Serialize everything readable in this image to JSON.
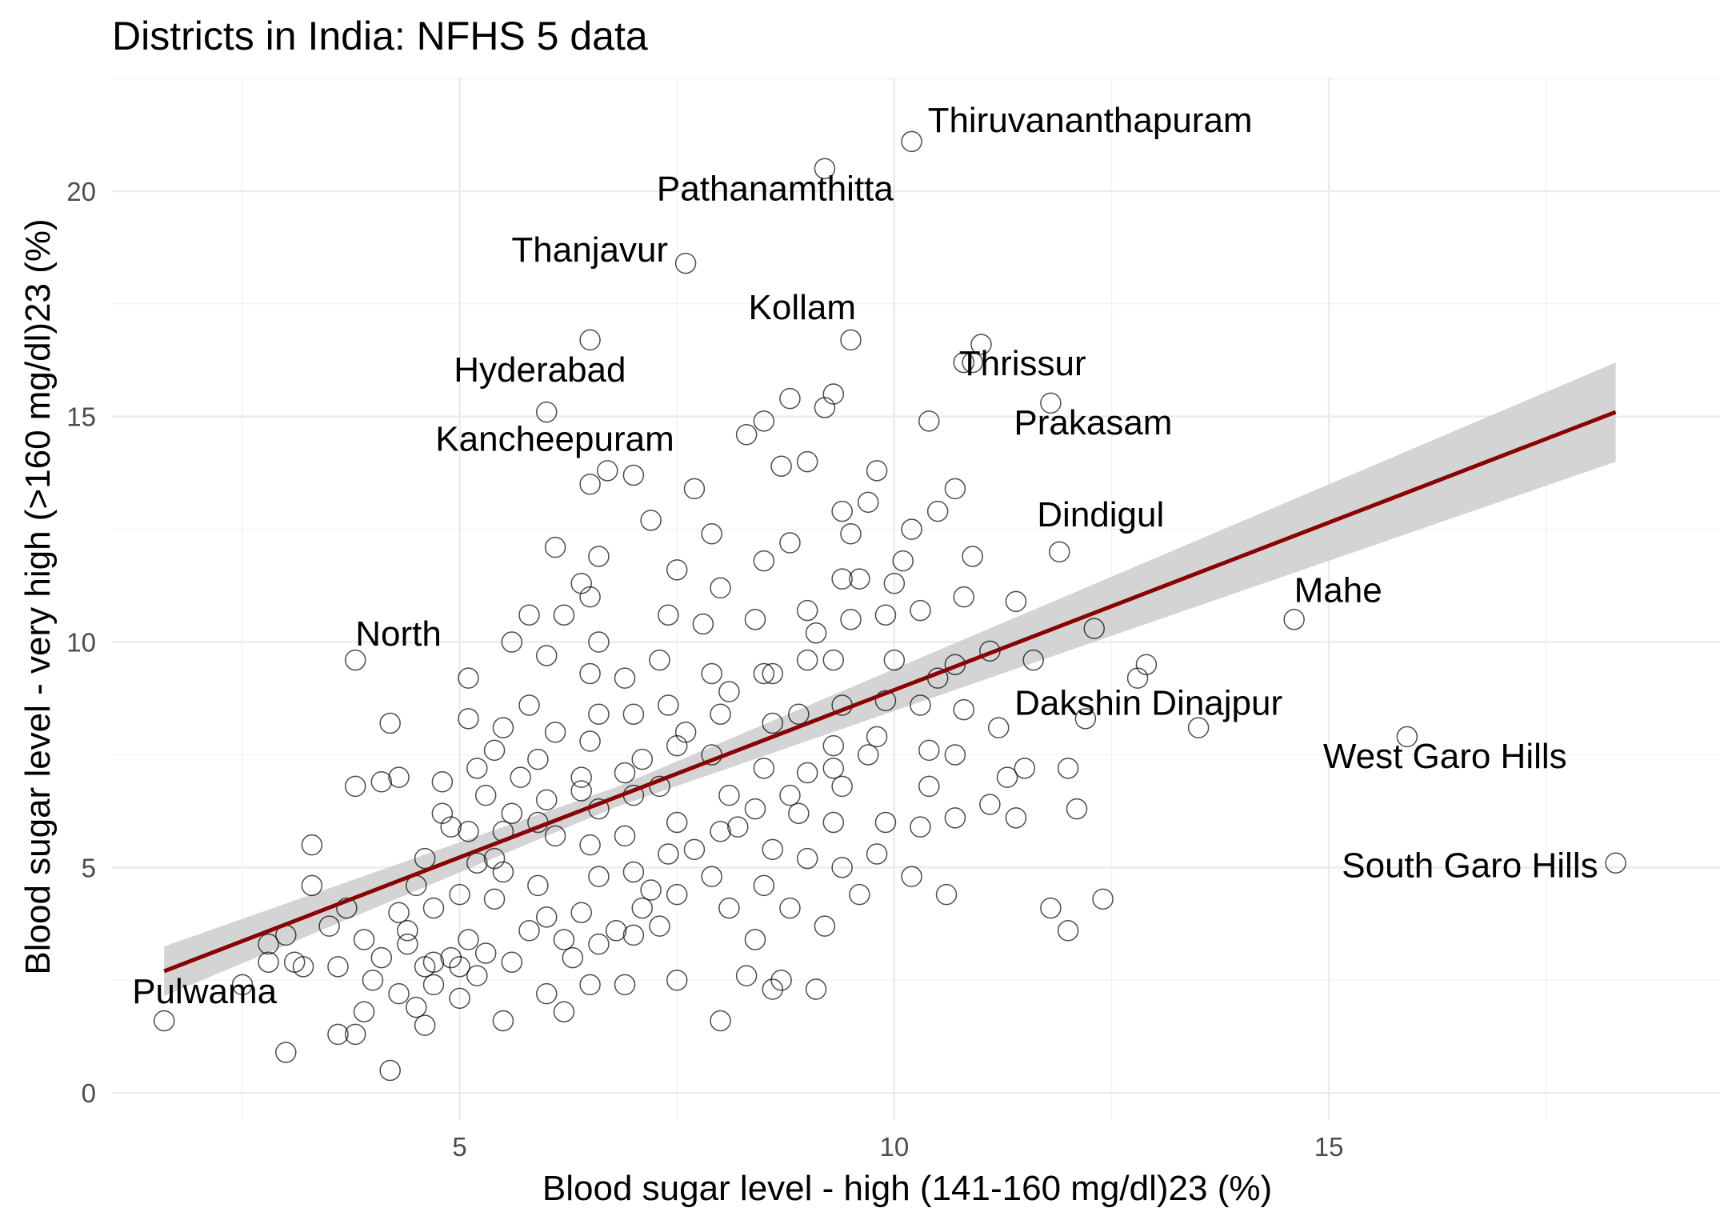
{
  "chart_data": {
    "type": "scatter",
    "title": "Districts in India: NFHS 5 data",
    "xlabel": "Blood sugar level - high (141-160 mg/dl)23 (%)",
    "ylabel": "Blood sugar level - very high (>160 mg/dl)23 (%)",
    "xlim": [
      1,
      19.5
    ],
    "ylim": [
      -0.6,
      22.5
    ],
    "x_ticks": [
      5,
      10,
      15
    ],
    "y_ticks": [
      0,
      5,
      10,
      15,
      20
    ],
    "grid": true,
    "point_style": "open circles",
    "trend": {
      "method": "linear fit with confidence band",
      "color": "#8b0000",
      "band_color": "#cccccc",
      "x": [
        1.6,
        18.3
      ],
      "y": [
        2.7,
        15.1
      ],
      "band_halfwidth": [
        0.55,
        1.1
      ]
    },
    "labeled_points": [
      {
        "label": "Thiruvananthapuram",
        "x": 10.2,
        "y": 21.1
      },
      {
        "label": "Pathanamthitta",
        "x": 9.2,
        "y": 20.5
      },
      {
        "label": "Thanjavur",
        "x": 7.6,
        "y": 18.4
      },
      {
        "label": "Kollam",
        "x": 9.5,
        "y": 16.7
      },
      {
        "label": "Hyderabad",
        "x": 6.0,
        "y": 15.1
      },
      {
        "label": "Thrissur",
        "x": 10.8,
        "y": 16.2
      },
      {
        "label": "Kancheepuram",
        "x": 6.7,
        "y": 13.8
      },
      {
        "label": "Prakasam",
        "x": 11.8,
        "y": 15.3
      },
      {
        "label": "Dindigul",
        "x": 11.9,
        "y": 12.0
      },
      {
        "label": "Mahe",
        "x": 14.6,
        "y": 10.5
      },
      {
        "label": "North",
        "x": 3.8,
        "y": 9.6
      },
      {
        "label": "Dakshin Dinajpur",
        "x": 13.5,
        "y": 8.1
      },
      {
        "label": "West Garo Hills",
        "x": 15.9,
        "y": 7.9
      },
      {
        "label": "South Garo Hills",
        "x": 18.3,
        "y": 5.1
      },
      {
        "label": "Pulwama",
        "x": 1.6,
        "y": 1.6
      }
    ],
    "other_points": [
      [
        3.0,
        0.9
      ],
      [
        4.2,
        0.5
      ],
      [
        2.5,
        2.4
      ],
      [
        2.8,
        3.3
      ],
      [
        3.3,
        5.5
      ],
      [
        3.3,
        4.6
      ],
      [
        3.1,
        2.9
      ],
      [
        3.5,
        3.7
      ],
      [
        3.7,
        4.1
      ],
      [
        3.9,
        3.4
      ],
      [
        3.8,
        6.8
      ],
      [
        4.1,
        6.9
      ],
      [
        4.3,
        7.0
      ],
      [
        4.2,
        8.2
      ],
      [
        4.0,
        2.5
      ],
      [
        3.9,
        1.8
      ],
      [
        3.6,
        1.3
      ],
      [
        3.8,
        1.3
      ],
      [
        4.5,
        1.9
      ],
      [
        4.6,
        1.5
      ],
      [
        4.7,
        2.9
      ],
      [
        4.4,
        3.3
      ],
      [
        4.3,
        4.0
      ],
      [
        4.5,
        4.6
      ],
      [
        4.6,
        5.2
      ],
      [
        4.9,
        5.9
      ],
      [
        4.8,
        6.2
      ],
      [
        4.8,
        6.9
      ],
      [
        4.7,
        2.4
      ],
      [
        5.0,
        2.1
      ],
      [
        5.1,
        3.4
      ],
      [
        5.0,
        4.4
      ],
      [
        5.2,
        5.1
      ],
      [
        5.1,
        5.8
      ],
      [
        5.3,
        6.6
      ],
      [
        5.2,
        7.2
      ],
      [
        5.4,
        7.6
      ],
      [
        5.1,
        9.2
      ],
      [
        5.1,
        8.3
      ],
      [
        5.0,
        2.8
      ],
      [
        5.3,
        3.1
      ],
      [
        5.4,
        4.3
      ],
      [
        5.5,
        4.9
      ],
      [
        5.5,
        5.8
      ],
      [
        5.6,
        6.2
      ],
      [
        5.7,
        7.0
      ],
      [
        5.5,
        8.1
      ],
      [
        5.8,
        8.6
      ],
      [
        5.6,
        10.0
      ],
      [
        5.8,
        10.6
      ],
      [
        6.1,
        12.1
      ],
      [
        6.2,
        10.6
      ],
      [
        6.0,
        9.7
      ],
      [
        6.1,
        8.0
      ],
      [
        5.9,
        7.4
      ],
      [
        6.0,
        6.5
      ],
      [
        6.1,
        5.7
      ],
      [
        5.9,
        4.6
      ],
      [
        6.0,
        3.9
      ],
      [
        6.2,
        3.4
      ],
      [
        6.0,
        2.2
      ],
      [
        6.2,
        1.8
      ],
      [
        5.5,
        1.6
      ],
      [
        6.5,
        2.4
      ],
      [
        6.6,
        3.3
      ],
      [
        6.4,
        4.0
      ],
      [
        6.6,
        4.8
      ],
      [
        6.5,
        5.5
      ],
      [
        6.6,
        6.3
      ],
      [
        6.4,
        7.0
      ],
      [
        6.5,
        7.8
      ],
      [
        6.6,
        8.4
      ],
      [
        6.5,
        9.3
      ],
      [
        6.6,
        10.0
      ],
      [
        6.5,
        11.0
      ],
      [
        6.6,
        11.9
      ],
      [
        6.4,
        11.3
      ],
      [
        6.9,
        9.2
      ],
      [
        7.0,
        8.4
      ],
      [
        7.1,
        7.4
      ],
      [
        7.0,
        6.6
      ],
      [
        6.9,
        5.7
      ],
      [
        7.0,
        4.9
      ],
      [
        7.1,
        4.1
      ],
      [
        7.0,
        3.5
      ],
      [
        6.9,
        2.4
      ],
      [
        7.5,
        2.5
      ],
      [
        7.3,
        3.7
      ],
      [
        7.5,
        4.4
      ],
      [
        7.4,
        5.3
      ],
      [
        7.5,
        6.0
      ],
      [
        7.3,
        6.8
      ],
      [
        7.5,
        7.7
      ],
      [
        7.4,
        8.6
      ],
      [
        7.3,
        9.6
      ],
      [
        7.4,
        10.6
      ],
      [
        7.5,
        11.6
      ],
      [
        7.2,
        12.7
      ],
      [
        7.7,
        13.4
      ],
      [
        7.9,
        12.4
      ],
      [
        8.0,
        11.2
      ],
      [
        7.8,
        10.4
      ],
      [
        7.9,
        9.3
      ],
      [
        8.0,
        8.4
      ],
      [
        7.9,
        7.5
      ],
      [
        8.1,
        6.6
      ],
      [
        8.0,
        5.8
      ],
      [
        7.9,
        4.8
      ],
      [
        8.1,
        4.1
      ],
      [
        8.0,
        1.6
      ],
      [
        8.3,
        2.6
      ],
      [
        8.4,
        3.4
      ],
      [
        8.5,
        4.6
      ],
      [
        8.6,
        5.4
      ],
      [
        8.4,
        6.3
      ],
      [
        8.5,
        7.2
      ],
      [
        8.6,
        8.2
      ],
      [
        8.5,
        9.3
      ],
      [
        8.4,
        10.5
      ],
      [
        8.5,
        11.8
      ],
      [
        8.3,
        14.6
      ],
      [
        8.5,
        14.9
      ],
      [
        8.7,
        13.9
      ],
      [
        8.8,
        15.4
      ],
      [
        9.0,
        14.0
      ],
      [
        8.8,
        12.2
      ],
      [
        9.0,
        10.7
      ],
      [
        9.0,
        9.6
      ],
      [
        8.9,
        8.4
      ],
      [
        9.0,
        7.1
      ],
      [
        8.9,
        6.2
      ],
      [
        9.0,
        5.2
      ],
      [
        8.8,
        4.1
      ],
      [
        8.7,
        2.5
      ],
      [
        8.6,
        2.3
      ],
      [
        9.1,
        2.3
      ],
      [
        9.2,
        3.7
      ],
      [
        9.4,
        5.0
      ],
      [
        9.3,
        6.0
      ],
      [
        9.4,
        6.8
      ],
      [
        9.3,
        7.7
      ],
      [
        9.4,
        8.6
      ],
      [
        9.3,
        9.6
      ],
      [
        9.5,
        10.5
      ],
      [
        9.4,
        11.4
      ],
      [
        9.5,
        12.4
      ],
      [
        9.4,
        12.9
      ],
      [
        9.2,
        15.2
      ],
      [
        9.3,
        15.5
      ],
      [
        9.6,
        11.4
      ],
      [
        9.7,
        13.1
      ],
      [
        9.8,
        13.8
      ],
      [
        9.6,
        4.4
      ],
      [
        9.8,
        5.3
      ],
      [
        9.9,
        6.0
      ],
      [
        9.7,
        7.5
      ],
      [
        9.9,
        8.7
      ],
      [
        10.0,
        9.6
      ],
      [
        9.9,
        10.6
      ],
      [
        10.0,
        11.3
      ],
      [
        10.1,
        11.8
      ],
      [
        10.2,
        12.5
      ],
      [
        10.2,
        4.8
      ],
      [
        10.3,
        5.9
      ],
      [
        10.4,
        6.8
      ],
      [
        10.4,
        7.6
      ],
      [
        10.3,
        8.6
      ],
      [
        10.5,
        9.2
      ],
      [
        10.3,
        10.7
      ],
      [
        10.5,
        12.9
      ],
      [
        10.6,
        4.4
      ],
      [
        10.7,
        6.1
      ],
      [
        10.7,
        7.5
      ],
      [
        10.8,
        8.5
      ],
      [
        10.7,
        9.5
      ],
      [
        10.8,
        11.0
      ],
      [
        10.9,
        11.9
      ],
      [
        10.7,
        13.4
      ],
      [
        10.4,
        14.9
      ],
      [
        10.9,
        16.2
      ],
      [
        11.0,
        16.6
      ],
      [
        11.1,
        6.4
      ],
      [
        11.2,
        8.1
      ],
      [
        11.1,
        9.8
      ],
      [
        11.3,
        7.0
      ],
      [
        11.4,
        6.1
      ],
      [
        11.5,
        7.2
      ],
      [
        11.6,
        9.6
      ],
      [
        11.4,
        10.9
      ],
      [
        11.8,
        4.1
      ],
      [
        12.0,
        3.6
      ],
      [
        12.1,
        6.3
      ],
      [
        12.2,
        8.3
      ],
      [
        12.0,
        7.2
      ],
      [
        12.3,
        10.3
      ],
      [
        12.4,
        4.3
      ],
      [
        12.8,
        9.2
      ],
      [
        12.9,
        9.5
      ],
      [
        6.5,
        16.7
      ],
      [
        6.5,
        13.5
      ],
      [
        7.0,
        13.7
      ],
      [
        3.2,
        2.8
      ],
      [
        2.8,
        2.9
      ],
      [
        3.0,
        3.5
      ],
      [
        4.9,
        3.0
      ],
      [
        5.2,
        2.6
      ],
      [
        5.6,
        2.9
      ],
      [
        5.8,
        3.6
      ],
      [
        6.3,
        3.0
      ],
      [
        6.8,
        3.6
      ],
      [
        7.2,
        4.5
      ],
      [
        7.7,
        5.4
      ],
      [
        8.2,
        5.9
      ],
      [
        8.8,
        6.6
      ],
      [
        9.3,
        7.2
      ],
      [
        9.8,
        7.9
      ],
      [
        5.4,
        5.2
      ],
      [
        5.9,
        6.0
      ],
      [
        6.4,
        6.7
      ],
      [
        6.9,
        7.1
      ],
      [
        7.6,
        8.0
      ],
      [
        8.1,
        8.9
      ],
      [
        8.6,
        9.3
      ],
      [
        9.1,
        10.2
      ],
      [
        4.7,
        4.1
      ],
      [
        4.4,
        3.6
      ],
      [
        4.1,
        3.0
      ],
      [
        3.6,
        2.8
      ],
      [
        4.3,
        2.2
      ],
      [
        4.6,
        2.8
      ]
    ]
  }
}
